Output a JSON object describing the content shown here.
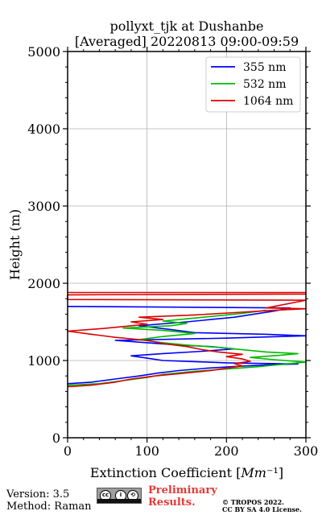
{
  "header": {
    "title_line1": "pollyxt_tjk at Dushanbe",
    "title_line2": "[Averaged] 20220813 09:00-09:59"
  },
  "footer": {
    "version": "Version: 3.5",
    "method": "Method: Raman",
    "preliminary_line1": "Preliminary",
    "preliminary_line2": "Results.",
    "copyright_line1": "© TROPOS 2022.",
    "copyright_line2": "CC BY SA 4.0 License."
  },
  "chart_data": {
    "type": "line",
    "title": "pollyxt_tjk at Dushanbe [Averaged] 20220813 09:00-09:59",
    "xlabel": "Extinction Coefficient [Mm⁻¹]",
    "ylabel": "Height (m)",
    "xlim": [
      0,
      300
    ],
    "ylim": [
      0,
      5000
    ],
    "xticks": [
      0,
      100,
      200,
      300
    ],
    "yticks": [
      0,
      1000,
      2000,
      3000,
      4000,
      5000
    ],
    "grid": true,
    "legend_position": "top-right",
    "series": [
      {
        "name": "355 nm",
        "color": "#0000ff",
        "points": [
          [
            0,
            700
          ],
          [
            30,
            720
          ],
          [
            60,
            760
          ],
          [
            90,
            800
          ],
          [
            115,
            840
          ],
          [
            140,
            870
          ],
          [
            175,
            900
          ],
          [
            215,
            925
          ],
          [
            255,
            945
          ],
          [
            290,
            955
          ],
          [
            200,
            970
          ],
          [
            160,
            985
          ],
          [
            120,
            1000
          ],
          [
            100,
            1030
          ],
          [
            80,
            1060
          ],
          [
            120,
            1090
          ],
          [
            170,
            1120
          ],
          [
            210,
            1150
          ],
          [
            180,
            1180
          ],
          [
            140,
            1200
          ],
          [
            100,
            1230
          ],
          [
            60,
            1260
          ],
          [
            200,
            1290
          ],
          [
            300,
            1320
          ],
          [
            250,
            1340
          ],
          [
            160,
            1360
          ],
          [
            130,
            1400
          ],
          [
            90,
            1450
          ],
          [
            150,
            1500
          ],
          [
            210,
            1560
          ],
          [
            260,
            1640
          ],
          [
            280,
            1680
          ],
          [
            0,
            1700
          ]
        ]
      },
      {
        "name": "532 nm",
        "color": "#00bb00",
        "points": [
          [
            0,
            680
          ],
          [
            40,
            700
          ],
          [
            70,
            740
          ],
          [
            100,
            780
          ],
          [
            120,
            820
          ],
          [
            160,
            860
          ],
          [
            200,
            890
          ],
          [
            240,
            920
          ],
          [
            270,
            950
          ],
          [
            300,
            980
          ],
          [
            260,
            1010
          ],
          [
            230,
            1040
          ],
          [
            270,
            1070
          ],
          [
            290,
            1090
          ],
          [
            250,
            1110
          ],
          [
            220,
            1140
          ],
          [
            190,
            1170
          ],
          [
            150,
            1200
          ],
          [
            120,
            1230
          ],
          [
            90,
            1270
          ],
          [
            120,
            1310
          ],
          [
            160,
            1350
          ],
          [
            120,
            1390
          ],
          [
            70,
            1420
          ],
          [
            130,
            1450
          ],
          [
            150,
            1480
          ],
          [
            120,
            1510
          ],
          [
            150,
            1540
          ],
          [
            180,
            1570
          ],
          [
            220,
            1610
          ],
          [
            250,
            1650
          ]
        ]
      },
      {
        "name": "1064 nm",
        "color": "#dd0000",
        "points": [
          [
            0,
            660
          ],
          [
            30,
            680
          ],
          [
            60,
            720
          ],
          [
            80,
            760
          ],
          [
            110,
            800
          ],
          [
            150,
            840
          ],
          [
            180,
            870
          ],
          [
            200,
            900
          ],
          [
            220,
            930
          ],
          [
            210,
            960
          ],
          [
            230,
            990
          ],
          [
            220,
            1020
          ],
          [
            200,
            1050
          ],
          [
            220,
            1080
          ],
          [
            190,
            1110
          ],
          [
            170,
            1140
          ],
          [
            150,
            1180
          ],
          [
            120,
            1220
          ],
          [
            100,
            1260
          ],
          [
            60,
            1300
          ],
          [
            30,
            1340
          ],
          [
            0,
            1380
          ],
          [
            40,
            1410
          ],
          [
            70,
            1440
          ],
          [
            100,
            1470
          ],
          [
            80,
            1500
          ],
          [
            120,
            1530
          ],
          [
            90,
            1560
          ],
          [
            160,
            1590
          ],
          [
            210,
            1620
          ],
          [
            260,
            1650
          ],
          [
            300,
            1670
          ],
          [
            250,
            1680
          ],
          [
            300,
            1780
          ],
          [
            0,
            1790
          ],
          [
            0,
            1850
          ],
          [
            300,
            1860
          ],
          [
            300,
            1880
          ],
          [
            0,
            1880
          ]
        ]
      }
    ]
  }
}
